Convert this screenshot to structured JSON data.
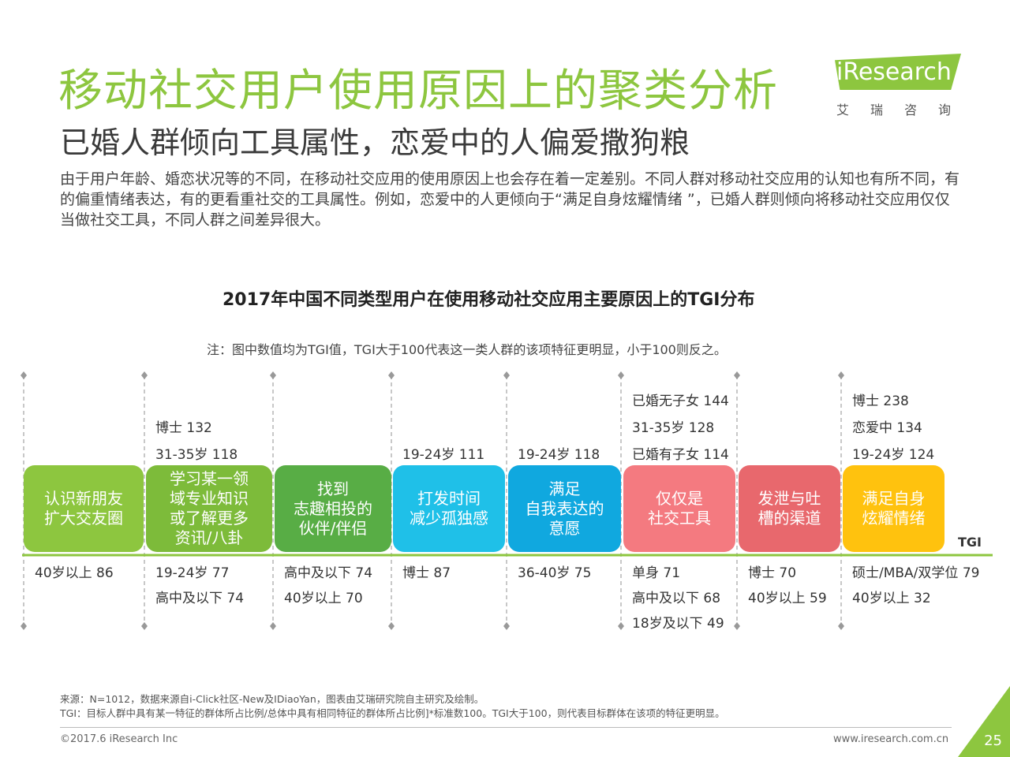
{
  "header": {
    "title": "移动社交用户使用原因上的聚类分析",
    "subtitle": "已婚人群倾向工具属性，恋爱中的人偏爱撒狗粮",
    "intro": "由于用户年龄、婚恋状况等的不同，在移动社交应用的使用原因上也会存在着一定差别。不同人群对移动社交应用的认知也有所不同，有的偏重情绪表达，有的更看重社交的工具属性。例如，恋爱中的人更倾向于“满足自身炫耀情绪 ”，已婚人群则倾向将移动社交应用仅仅当做社交工具，不同人群之间差异很大。"
  },
  "logo": {
    "text": "iResearch",
    "chinese": "艾瑞咨询",
    "color": "#8dc63f"
  },
  "chart_data": {
    "type": "table",
    "title": "2017年中国不同类型用户在使用移动社交应用主要原因上的TGI分布",
    "note": "注：图中数值均为TGI值，TGI大于100代表这一类人群的该项特征更明显，小于100则反之。",
    "axis_label": "TGI",
    "categories": [
      {
        "label": "认识新朋友\n扩大交友圈",
        "color": "#8dc63f",
        "above": [],
        "below": [
          {
            "group": "40岁以上",
            "tgi": 86
          }
        ]
      },
      {
        "label": "学习某一领\n域专业知识\n或了解更多\n资讯/八卦",
        "color": "#7dbb3a",
        "above": [
          {
            "group": "博士",
            "tgi": 132
          },
          {
            "group": "31-35岁",
            "tgi": 118
          }
        ],
        "below": [
          {
            "group": "19-24岁",
            "tgi": 77
          },
          {
            "group": "高中及以下",
            "tgi": 74
          }
        ]
      },
      {
        "label": "找到\n志趣相投的\n伙伴/伴侣",
        "color": "#58ad45",
        "above": [],
        "below": [
          {
            "group": "高中及以下",
            "tgi": 74
          },
          {
            "group": "40岁以上",
            "tgi": 70
          }
        ]
      },
      {
        "label": "打发时间\n减少孤独感",
        "color": "#1fc0e8",
        "above": [
          {
            "group": "19-24岁",
            "tgi": 111
          }
        ],
        "below": [
          {
            "group": "博士",
            "tgi": 87
          }
        ]
      },
      {
        "label": "满足\n自我表达的\n意愿",
        "color": "#10a8df",
        "above": [
          {
            "group": "19-24岁",
            "tgi": 118
          }
        ],
        "below": [
          {
            "group": "36-40岁",
            "tgi": 75
          }
        ]
      },
      {
        "label": "仅仅是\n社交工具",
        "color": "#f47a80",
        "above": [
          {
            "group": "已婚无子女",
            "tgi": 144
          },
          {
            "group": "31-35岁",
            "tgi": 128
          },
          {
            "group": "已婚有子女",
            "tgi": 114
          }
        ],
        "below": [
          {
            "group": "单身",
            "tgi": 71
          },
          {
            "group": "高中及以下",
            "tgi": 68
          },
          {
            "group": "18岁及以下",
            "tgi": 49
          }
        ]
      },
      {
        "label": "发泄与吐\n槽的渠道",
        "color": "#e8686d",
        "above": [],
        "below": [
          {
            "group": "博士",
            "tgi": 70
          },
          {
            "group": "40岁以上",
            "tgi": 59
          }
        ]
      },
      {
        "label": "满足自身\n炫耀情绪",
        "color": "#ffc20e",
        "above": [
          {
            "group": "博士",
            "tgi": 238
          },
          {
            "group": "恋爱中",
            "tgi": 134
          },
          {
            "group": "19-24岁",
            "tgi": 124
          }
        ],
        "below": [
          {
            "group": "硕士/MBA/双学位",
            "tgi": 79
          },
          {
            "group": "40岁以上",
            "tgi": 32
          }
        ]
      }
    ]
  },
  "footer": {
    "source_line1": "来源：N=1012，数据来源自i-Click社区-New及IDiaoYan，图表由艾瑞研究院自主研究及绘制。",
    "source_line2": "TGI：目标人群中具有某一特征的群体所占比例/总体中具有相同特征的群体所占比例]*标准数100。TGI大于100，则代表目标群体在该项的特征更明显。",
    "copyright": "©2017.6 iResearch Inc",
    "website": "www.iresearch.com.cn",
    "page": "25"
  }
}
